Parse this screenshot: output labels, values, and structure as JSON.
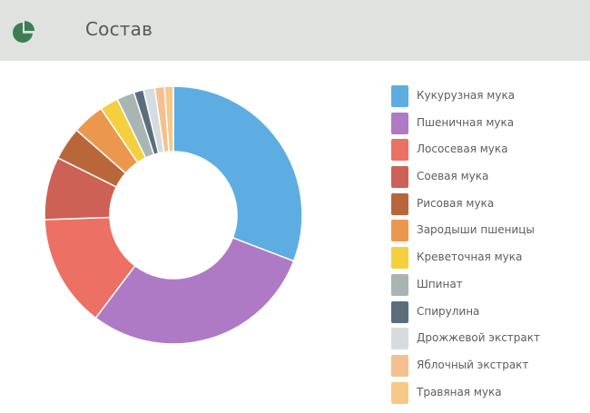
{
  "header": {
    "title": "Состав",
    "icon": "pie-chart-icon",
    "icon_color": "#3e7d56"
  },
  "chart_data": {
    "type": "pie",
    "series": [
      {
        "label": "Кукурузная мука",
        "value": 30.5,
        "color": "#5dade2"
      },
      {
        "label": "Пшеничная мука",
        "value": 29.2,
        "color": "#af7ac5"
      },
      {
        "label": "Лососевая мука",
        "value": 14.0,
        "color": "#ec7063"
      },
      {
        "label": "Соевая мука",
        "value": 7.8,
        "color": "#cd6155"
      },
      {
        "label": "Рисовая мука",
        "value": 4.1,
        "color": "#b9673a"
      },
      {
        "label": "Зародыши пшеницы",
        "value": 4.0,
        "color": "#eb984e"
      },
      {
        "label": "Креветочная мука",
        "value": 2.3,
        "color": "#f4d03f"
      },
      {
        "label": "Шпинат",
        "value": 2.2,
        "color": "#a9b5b3"
      },
      {
        "label": "Спирулина",
        "value": 1.2,
        "color": "#5d6d7e"
      },
      {
        "label": "Дрожжевой экстракт",
        "value": 1.4,
        "color": "#d6dbdf"
      },
      {
        "label": "Яблочный экстракт",
        "value": 1.2,
        "color": "#f5c08f"
      },
      {
        "label": "Травяная мука",
        "value": 1.1,
        "color": "#f8c888"
      }
    ]
  }
}
